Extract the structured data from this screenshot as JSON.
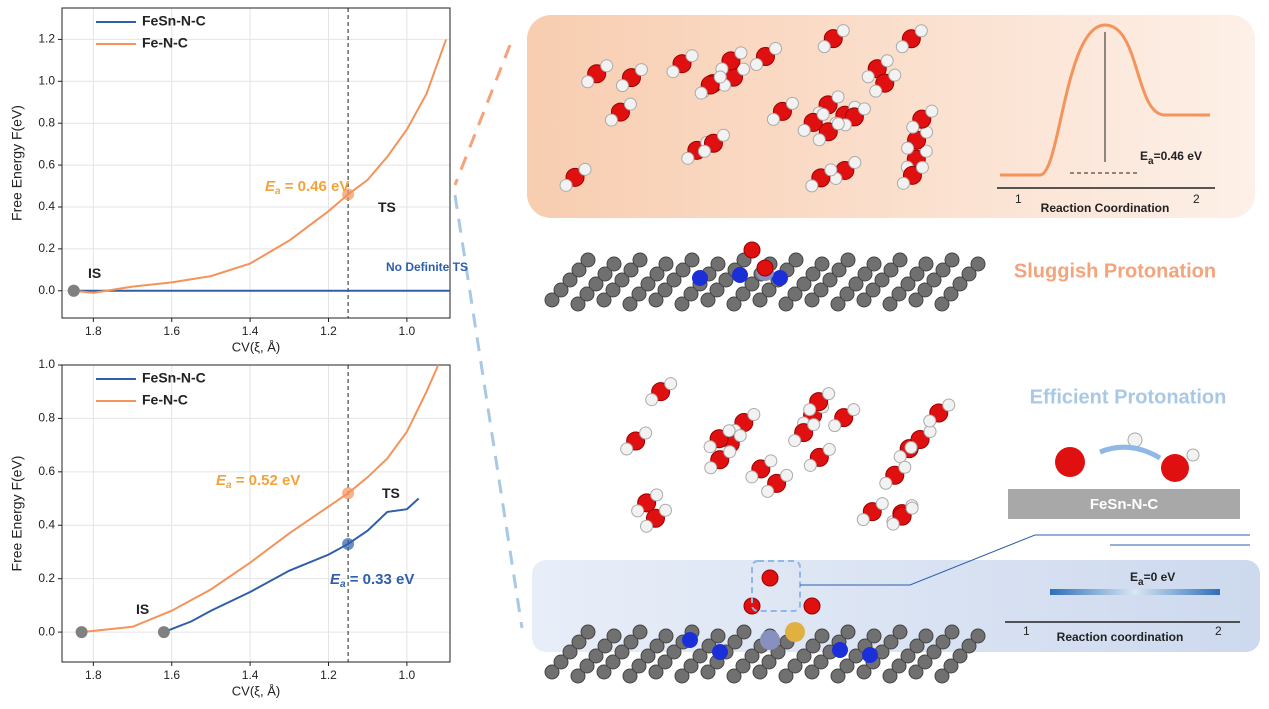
{
  "chart_data": [
    {
      "type": "line",
      "xlabel": "CV(ξ,  Å)",
      "ylabel": "Free Energy F(eV)",
      "xlim": [
        1.88,
        0.89
      ],
      "ylim": [
        -0.13,
        1.35
      ],
      "xticks": [
        1.8,
        1.6,
        1.4,
        1.2,
        {
          "value": 1.0,
          "label": "1.0"
        }
      ],
      "yticks": [
        {
          "value": 0,
          "label": "0.0"
        },
        0.2,
        0.4,
        0.6,
        0.8,
        {
          "value": 1.0,
          "label": "1.0"
        },
        1.2
      ],
      "grid": true,
      "legend": "upper left",
      "ts_x": 1.15,
      "series": [
        {
          "name": "FeSn-N-C",
          "color": "#2e5fa8",
          "x": [
            1.85,
            0.89
          ],
          "values": [
            0,
            0
          ]
        },
        {
          "name": "Fe-N-C",
          "color": "#f4935a",
          "x": [
            1.85,
            1.8,
            1.7,
            1.6,
            1.5,
            1.4,
            1.3,
            1.2,
            1.15,
            1.1,
            1.05,
            1.0,
            0.95,
            0.9
          ],
          "values": [
            0,
            -0.01,
            0.02,
            0.04,
            0.07,
            0.13,
            0.24,
            0.38,
            0.46,
            0.53,
            0.64,
            0.77,
            0.94,
            1.2
          ]
        }
      ],
      "annotations": [
        {
          "text": "IS"
        },
        {
          "text": "TS"
        },
        {
          "text": "No Definite TS"
        },
        {
          "text": "E",
          "sub": "a",
          "rest": " = 0.46 eV"
        }
      ]
    },
    {
      "type": "line",
      "xlabel": "CV(ξ,  Å)",
      "ylabel": "Free Energy  F(eV)",
      "xlim": [
        1.88,
        0.89
      ],
      "ylim": [
        -0.112,
        1.0
      ],
      "xticks": [
        1.8,
        1.6,
        1.4,
        1.2,
        {
          "value": 1.0,
          "label": "1.0"
        }
      ],
      "yticks": [
        {
          "value": 0,
          "label": "0.0"
        },
        0.2,
        0.4,
        0.6,
        0.8,
        {
          "value": 1.0,
          "label": "1.0"
        }
      ],
      "grid": true,
      "legend": "upper left",
      "ts_x": 1.15,
      "series": [
        {
          "name": "FeSn-N-C",
          "color": "#2e5fa8",
          "x": [
            1.62,
            1.55,
            1.5,
            1.4,
            1.3,
            1.2,
            1.15,
            1.1,
            1.05,
            1.0,
            0.97
          ],
          "values": [
            0,
            0.04,
            0.08,
            0.15,
            0.23,
            0.29,
            0.33,
            0.38,
            0.45,
            0.46,
            0.5
          ]
        },
        {
          "name": "Fe-N-C",
          "color": "#f4935a",
          "x": [
            1.83,
            1.7,
            1.6,
            1.5,
            1.4,
            1.3,
            1.2,
            1.15,
            1.1,
            1.05,
            1.0,
            0.95,
            0.92
          ],
          "values": [
            0,
            0.02,
            0.08,
            0.16,
            0.26,
            0.37,
            0.47,
            0.52,
            0.58,
            0.65,
            0.75,
            0.9,
            1.0
          ]
        }
      ],
      "annotations": [
        {
          "text": "IS"
        },
        {
          "text": "TS"
        },
        {
          "text": "E",
          "sub": "a",
          "rest": " = 0.52 eV"
        },
        {
          "text": "E",
          "sub": "a",
          "rest": " = 0.33 eV"
        }
      ]
    }
  ],
  "illustration": {
    "top_energy": {
      "text": "E",
      "sub": "a",
      "rest": "=0.46 eV"
    },
    "top_axis": "Reaction Coordination",
    "top_start": "1",
    "top_end": "2",
    "sluggish": "Sluggish Protonation",
    "efficient": "Efficient Protonation",
    "substrate": "FeSn-N-C",
    "bottom_energy": {
      "text": "E",
      "sub": "a",
      "rest": "=0 eV"
    },
    "bottom_axis": "Reaction coordination",
    "bottom_start": "1",
    "bottom_end": "2"
  }
}
